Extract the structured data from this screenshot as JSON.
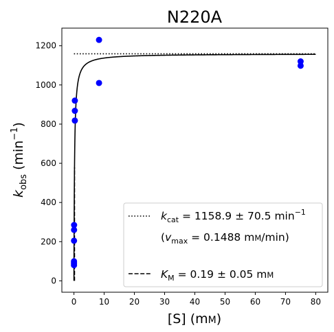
{
  "chart_data": {
    "type": "scatter",
    "title": "N220A",
    "xlabel": {
      "main": "[S] (m",
      "small": "M",
      "close": ")"
    },
    "ylabel": {
      "k": "k",
      "sub": "obs",
      "rest": " (min",
      "sup": "−1",
      "close": ")"
    },
    "xlim": [
      -4,
      84
    ],
    "ylim": [
      -58,
      1290
    ],
    "xticks": [
      0,
      10,
      20,
      30,
      40,
      50,
      60,
      70,
      80
    ],
    "yticks": [
      0,
      200,
      400,
      600,
      800,
      1000,
      1200
    ],
    "grid": false,
    "legend_position": "lower-right",
    "point_color": "#0000ff",
    "points": [
      {
        "x": 0.02,
        "y": 80
      },
      {
        "x": 0.02,
        "y": 90
      },
      {
        "x": 0.02,
        "y": 100
      },
      {
        "x": 0.03,
        "y": 205
      },
      {
        "x": 0.04,
        "y": 260
      },
      {
        "x": 0.05,
        "y": 285
      },
      {
        "x": 0.3,
        "y": 818
      },
      {
        "x": 0.3,
        "y": 868
      },
      {
        "x": 0.3,
        "y": 920
      },
      {
        "x": 8.3,
        "y": 1010
      },
      {
        "x": 8.3,
        "y": 1230
      },
      {
        "x": 75,
        "y": 1098
      },
      {
        "x": 75,
        "y": 1120
      }
    ],
    "fit": {
      "kcat": 1158.9,
      "km": 0.19,
      "x_range": [
        0,
        80
      ]
    },
    "kcat_line": {
      "y": 1158.9,
      "x_range": [
        0,
        80
      ]
    },
    "km_line": {
      "x": 0.19,
      "y_range": [
        0,
        579.5
      ]
    },
    "legend": {
      "kcat": {
        "k": "k",
        "sub": "cat",
        "text": " = 1158.9 ± 70.5 min",
        "sup": "−1"
      },
      "vmax": {
        "open": "(",
        "v": "v",
        "sub": "max",
        "text": " = 0.1488 m",
        "small": "M",
        "tail": "/min)"
      },
      "km": {
        "k": "K",
        "sub": "M",
        "text": " = 0.19 ± 0.05 m",
        "small": "M"
      }
    }
  }
}
